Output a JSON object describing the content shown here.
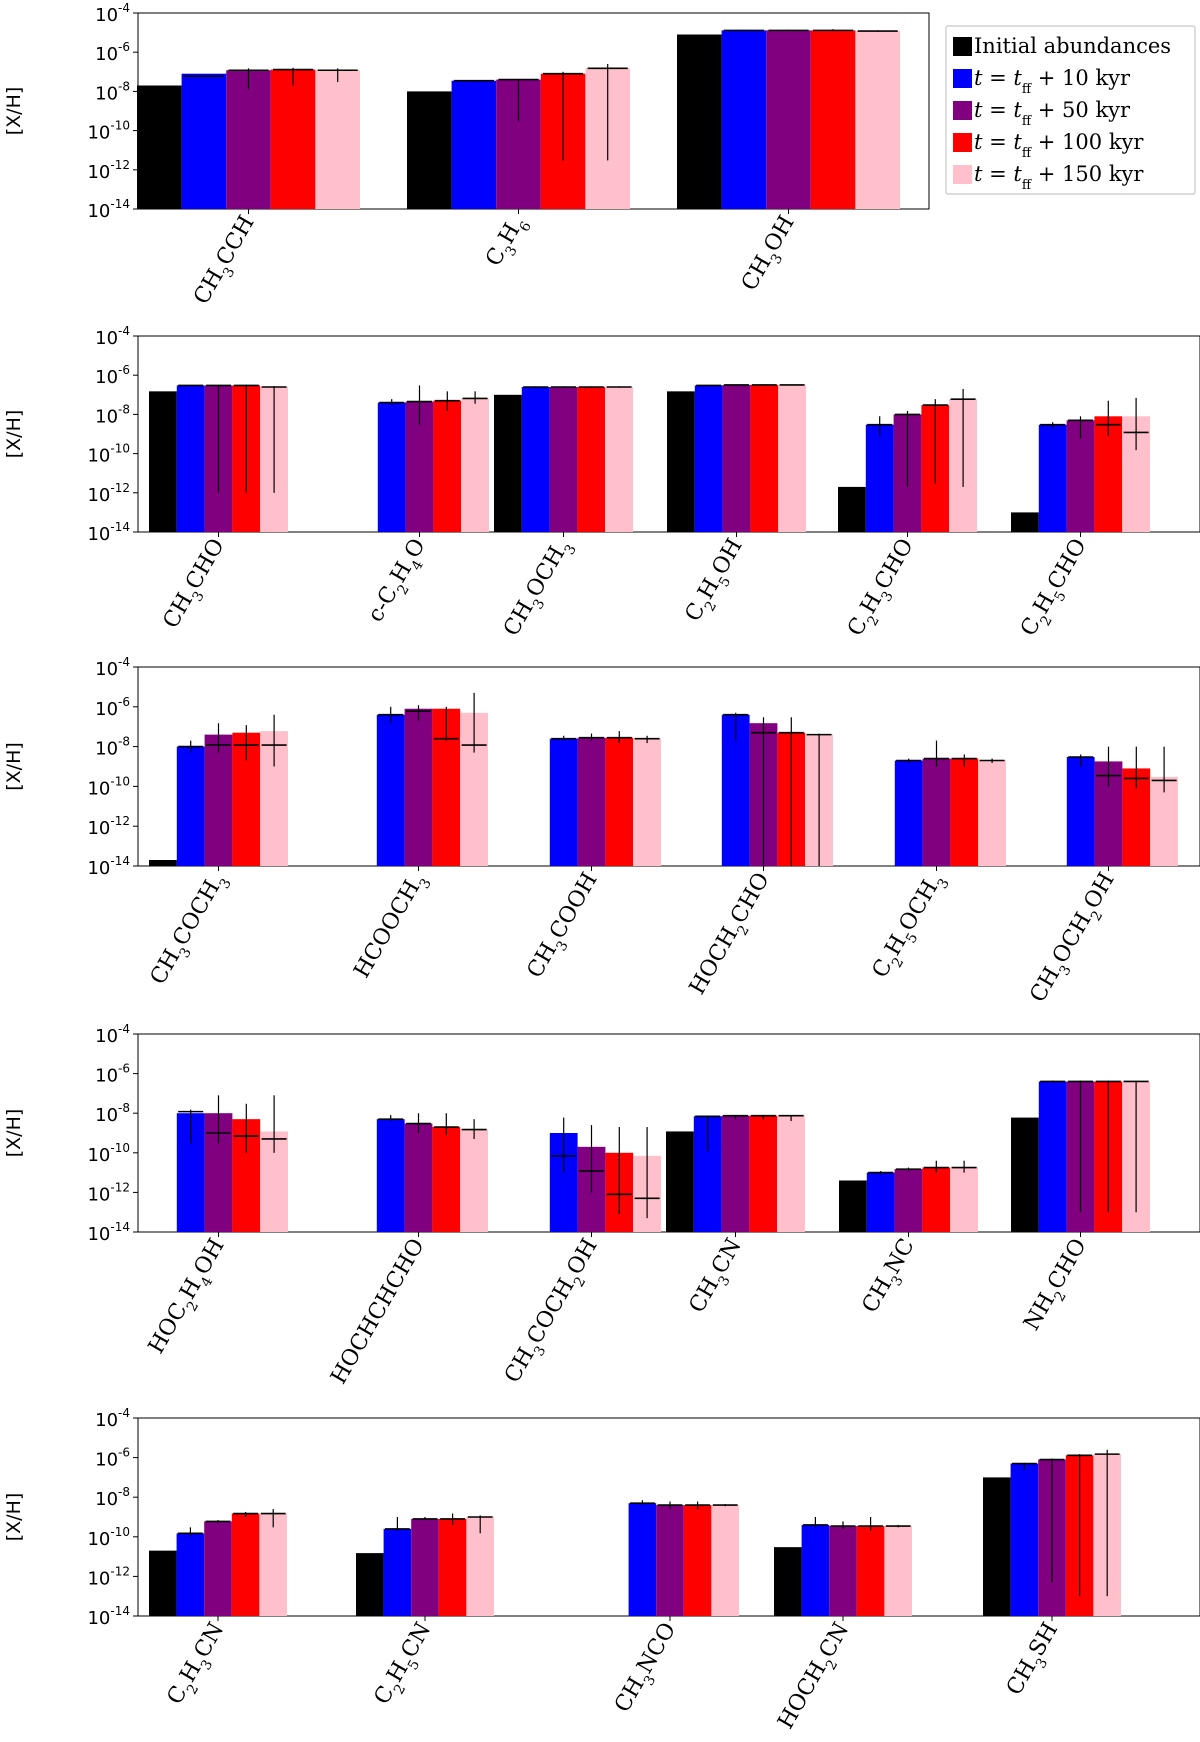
{
  "legend": {
    "items": [
      {
        "label": "Initial abundances",
        "color": "#000000"
      },
      {
        "label": "t = t_ff + 10 kyr",
        "color": "#0000ff"
      },
      {
        "label": "t = t_ff + 50 kyr",
        "color": "#800080"
      },
      {
        "label": "t = t_ff + 100 kyr",
        "color": "#ff0000"
      },
      {
        "label": "t = t_ff + 150 kyr",
        "color": "#ffc0cb"
      }
    ],
    "placement": "top-right"
  },
  "chart_data": [
    {
      "type": "bar",
      "ylabel": "[X/H]",
      "yscale": "log",
      "ylim_exp": [
        -14,
        -4
      ],
      "ytick_exps": [
        -14,
        -12,
        -10,
        -8,
        -6,
        -4
      ],
      "categories": [
        "CH3CCH",
        "C3H6",
        "CH3OH"
      ],
      "values": [
        [
          2e-08,
          8e-08,
          1.2e-07,
          1.3e-07,
          1.2e-07
        ],
        [
          1e-08,
          3.5e-08,
          4e-08,
          8e-08,
          1.5e-07
        ],
        [
          8e-06,
          1.3e-05,
          1.3e-05,
          1.3e-05,
          1.2e-05
        ]
      ],
      "errors": [
        [
          null,
          [
            6e-08,
            9e-08,
            9e-08
          ],
          [
            1.2e-07,
            1.3e-08,
            1.5e-07
          ],
          [
            1.3e-07,
            2e-08,
            1.6e-07
          ],
          [
            1.2e-07,
            3e-08,
            1.5e-07
          ]
        ],
        [
          null,
          [
            3.5e-08,
            3e-08,
            3.8e-08
          ],
          [
            4e-08,
            3e-10,
            4e-08
          ],
          [
            8e-08,
            3e-12,
            1e-07
          ],
          [
            1.5e-07,
            3e-12,
            2.5e-07
          ]
        ],
        [
          null,
          [
            1.3e-05,
            1.2e-05,
            1.4e-05
          ],
          [
            1.3e-05,
            1.2e-05,
            1.4e-05
          ],
          [
            1.3e-05,
            1.2e-05,
            1.5e-05
          ],
          [
            1.2e-05,
            1.1e-05,
            1.3e-05
          ]
        ]
      ]
    },
    {
      "type": "bar",
      "ylabel": "[X/H]",
      "yscale": "log",
      "ylim_exp": [
        -14,
        -4
      ],
      "ytick_exps": [
        -14,
        -12,
        -10,
        -8,
        -6,
        -4
      ],
      "categories": [
        "CH3CHO",
        "c-C2H4O",
        "CH3OCH3",
        "C2H5OH",
        "C2H3CHO",
        "C2H5CHO"
      ],
      "values": [
        [
          1.5e-07,
          3e-07,
          3e-07,
          3e-07,
          2.5e-07
        ],
        [
          null,
          4e-08,
          4.5e-08,
          5e-08,
          6.5e-08
        ],
        [
          1e-07,
          2.5e-07,
          2.5e-07,
          2.5e-07,
          2.5e-07
        ],
        [
          1.5e-07,
          3e-07,
          3.2e-07,
          3.2e-07,
          3.2e-07
        ],
        [
          2e-12,
          3e-09,
          1e-08,
          3e-08,
          6e-08
        ],
        [
          1e-13,
          3e-09,
          5e-09,
          8e-09,
          8e-09
        ]
      ],
      "errors": [
        [
          null,
          [
            3e-07,
            2.8e-07,
            3.2e-07
          ],
          [
            3e-07,
            1e-12,
            3.2e-07
          ],
          [
            3e-07,
            1e-12,
            3.3e-07
          ],
          [
            2.5e-07,
            1e-12,
            2.8e-07
          ]
        ],
        [
          null,
          [
            4e-08,
            3e-08,
            6e-08
          ],
          [
            4.5e-08,
            3e-09,
            3e-07
          ],
          [
            5e-08,
            1.5e-08,
            1.5e-07
          ],
          [
            6.5e-08,
            3.5e-08,
            1.5e-07
          ]
        ],
        [
          null,
          [
            2.5e-07,
            2.3e-07,
            2.7e-07
          ],
          [
            2.5e-07,
            2.3e-07,
            2.7e-07
          ],
          [
            2.5e-07,
            2.3e-07,
            2.7e-07
          ],
          [
            2.5e-07,
            2.3e-07,
            2.7e-07
          ]
        ],
        [
          null,
          [
            3e-07,
            2.8e-07,
            3.2e-07
          ],
          [
            3.2e-07,
            3e-07,
            3.4e-07
          ],
          [
            3.2e-07,
            3e-07,
            3.4e-07
          ],
          [
            3.2e-07,
            3e-07,
            3.4e-07
          ]
        ],
        [
          null,
          [
            3e-09,
            8e-10,
            8e-09
          ],
          [
            1e-08,
            2e-12,
            1.5e-08
          ],
          [
            3e-08,
            3e-12,
            6e-08
          ],
          [
            6e-08,
            2e-12,
            2e-07
          ]
        ],
        [
          null,
          [
            3e-09,
            2e-09,
            4e-09
          ],
          [
            5e-09,
            6e-10,
            8e-09
          ],
          [
            3e-09,
            8e-10,
            5e-08
          ],
          [
            1.2e-09,
            1.5e-10,
            7e-08
          ]
        ]
      ]
    },
    {
      "type": "bar",
      "ylabel": "[X/H]",
      "yscale": "log",
      "ylim_exp": [
        -14,
        -4
      ],
      "ytick_exps": [
        -14,
        -12,
        -10,
        -8,
        -6,
        -4
      ],
      "categories": [
        "CH3COCH3",
        "HCOOCH3",
        "CH3COOH",
        "HOCH2CHO",
        "C2H5OCH3",
        "CH3OCH2OH"
      ],
      "values": [
        [
          2e-14,
          1e-08,
          4e-08,
          5e-08,
          6e-08
        ],
        [
          null,
          4e-07,
          8e-07,
          8e-07,
          5e-07
        ],
        [
          null,
          2.5e-08,
          2.8e-08,
          2.8e-08,
          2.5e-08
        ],
        [
          null,
          4e-07,
          1.5e-07,
          5e-08,
          4e-08
        ],
        [
          null,
          2e-09,
          2.5e-09,
          2.5e-09,
          2e-09
        ],
        [
          null,
          3e-09,
          1.8e-09,
          8e-10,
          3e-10
        ]
      ],
      "errors": [
        [
          null,
          [
            1e-08,
            5e-09,
            2e-08
          ],
          [
            1.2e-08,
            5e-09,
            1.5e-07
          ],
          [
            1.2e-08,
            2e-09,
            1.2e-07
          ],
          [
            1.2e-08,
            1e-09,
            4e-07
          ]
        ],
        [
          null,
          [
            4e-07,
            1.5e-07,
            1e-06
          ],
          [
            6e-07,
            2e-07,
            1.2e-06
          ],
          [
            2.5e-08,
            2e-08,
            1e-06
          ],
          [
            1.2e-08,
            5e-09,
            5e-06
          ]
        ],
        [
          null,
          [
            2.5e-08,
            2e-08,
            3.5e-08
          ],
          [
            2.8e-08,
            2e-08,
            4.5e-08
          ],
          [
            2.8e-08,
            1.5e-08,
            6e-08
          ],
          [
            2.5e-08,
            1.5e-08,
            3.5e-08
          ]
        ],
        [
          null,
          [
            4e-07,
            2e-08,
            5e-07
          ],
          [
            5e-08,
            1e-14,
            3e-07
          ],
          [
            5e-08,
            1e-14,
            3e-07
          ],
          [
            4e-08,
            1e-14,
            4.5e-08
          ]
        ],
        [
          null,
          [
            2e-09,
            1.5e-09,
            2.5e-09
          ],
          [
            2.5e-09,
            1e-09,
            2e-08
          ],
          [
            2.5e-09,
            1e-09,
            4e-09
          ],
          [
            2e-09,
            1.5e-09,
            2.5e-09
          ]
        ],
        [
          null,
          [
            3e-09,
            1e-09,
            4e-09
          ],
          [
            3.5e-10,
            1e-10,
            1e-08
          ],
          [
            2.5e-10,
            8e-11,
            1e-08
          ],
          [
            2e-10,
            5e-11,
            1e-08
          ]
        ]
      ]
    },
    {
      "type": "bar",
      "ylabel": "[X/H]",
      "yscale": "log",
      "ylim_exp": [
        -14,
        -4
      ],
      "ytick_exps": [
        -14,
        -12,
        -10,
        -8,
        -6,
        -4
      ],
      "categories": [
        "HOC2H4OH",
        "HOCHCHCHO",
        "CH3COCH2OH",
        "CH3CN",
        "CH3NC",
        "NH2CHO"
      ],
      "values": [
        [
          null,
          1e-08,
          1e-08,
          5e-09,
          1.2e-09
        ],
        [
          null,
          5e-09,
          3e-09,
          2e-09,
          1.5e-09
        ],
        [
          null,
          1e-09,
          2e-10,
          1e-10,
          7e-11
        ],
        [
          1.2e-09,
          7e-09,
          7.5e-09,
          7.5e-09,
          7.5e-09
        ],
        [
          4e-12,
          1e-11,
          1.5e-11,
          1.8e-11,
          1.8e-11
        ],
        [
          6e-09,
          4e-07,
          4e-07,
          4e-07,
          4e-07
        ]
      ],
      "errors": [
        [
          null,
          [
            1.2e-08,
            3e-10,
            1.5e-08
          ],
          [
            1e-09,
            3e-10,
            8e-08
          ],
          [
            7e-10,
            1e-10,
            3e-08
          ],
          [
            5e-10,
            1e-10,
            8e-08
          ]
        ],
        [
          null,
          [
            5e-09,
            4e-09,
            8e-09
          ],
          [
            3e-09,
            1e-09,
            1e-08
          ],
          [
            2e-09,
            8e-10,
            1e-08
          ],
          [
            1.5e-09,
            5e-10,
            5e-09
          ]
        ],
        [
          null,
          [
            7e-11,
            1e-11,
            6e-09
          ],
          [
            1.2e-11,
            1e-12,
            2.5e-09
          ],
          [
            8e-13,
            8e-14,
            2e-09
          ],
          [
            5e-13,
            5e-14,
            2e-09
          ]
        ],
        [
          null,
          [
            7e-09,
            1.2e-10,
            7.5e-09
          ],
          [
            7.5e-09,
            5e-09,
            8e-09
          ],
          [
            7.5e-09,
            5e-09,
            8e-09
          ],
          [
            7.5e-09,
            4e-09,
            8e-09
          ]
        ],
        [
          null,
          [
            1e-11,
            8e-12,
            1.2e-11
          ],
          [
            1.5e-11,
            1.2e-11,
            1.8e-11
          ],
          [
            1.8e-11,
            1e-11,
            4e-11
          ],
          [
            1.8e-11,
            1e-11,
            4e-11
          ]
        ],
        [
          null,
          [
            4e-07,
            3.5e-07,
            4.5e-07
          ],
          [
            4e-07,
            1e-13,
            4.5e-07
          ],
          [
            4e-07,
            1e-13,
            4.5e-07
          ],
          [
            4e-07,
            1e-13,
            4.5e-07
          ]
        ]
      ]
    },
    {
      "type": "bar",
      "ylabel": "[X/H]",
      "yscale": "log",
      "ylim_exp": [
        -14,
        -4
      ],
      "ytick_exps": [
        -14,
        -12,
        -10,
        -8,
        -6,
        -4
      ],
      "categories": [
        "C2H3CN",
        "C2H5CN",
        "CH3NCO",
        "HOCH2CN",
        "CH3SH"
      ],
      "values": [
        [
          2e-11,
          1.5e-10,
          6e-10,
          1.5e-09,
          1.5e-09
        ],
        [
          1.5e-11,
          2.5e-10,
          8e-10,
          8e-10,
          1e-09
        ],
        [
          null,
          5e-09,
          4e-09,
          4e-09,
          4e-09
        ],
        [
          3e-11,
          4e-10,
          3.5e-10,
          3.5e-10,
          3.5e-10
        ],
        [
          1e-07,
          5e-07,
          8e-07,
          1.3e-06,
          1.5e-06
        ]
      ],
      "errors": [
        [
          null,
          [
            1.5e-10,
            1e-10,
            3e-10
          ],
          [
            6e-10,
            5e-10,
            7e-10
          ],
          [
            1.5e-09,
            1e-09,
            1.8e-09
          ],
          [
            1.5e-09,
            3e-10,
            2.5e-09
          ]
        ],
        [
          null,
          [
            2.5e-10,
            2e-10,
            1e-09
          ],
          [
            8e-10,
            7e-10,
            1e-09
          ],
          [
            8e-10,
            4e-10,
            1.5e-09
          ],
          [
            1e-09,
            1.5e-10,
            1.2e-09
          ]
        ],
        [
          null,
          [
            5e-09,
            4e-09,
            7e-09
          ],
          [
            4e-09,
            2.5e-09,
            6e-09
          ],
          [
            4e-09,
            2.5e-09,
            6e-09
          ],
          [
            4e-09,
            3.5e-09,
            4.5e-09
          ]
        ],
        [
          null,
          [
            4e-10,
            3e-10,
            1e-09
          ],
          [
            3.5e-10,
            2.5e-10,
            6e-10
          ],
          [
            3.5e-10,
            2e-10,
            1e-09
          ],
          [
            3.5e-10,
            3e-10,
            4e-10
          ]
        ],
        [
          null,
          [
            5e-07,
            2.5e-07,
            5.5e-07
          ],
          [
            8e-07,
            5e-13,
            9e-07
          ],
          [
            1.3e-06,
            1e-13,
            1.5e-06
          ],
          [
            1.5e-06,
            1e-13,
            2.5e-06
          ]
        ]
      ]
    }
  ]
}
